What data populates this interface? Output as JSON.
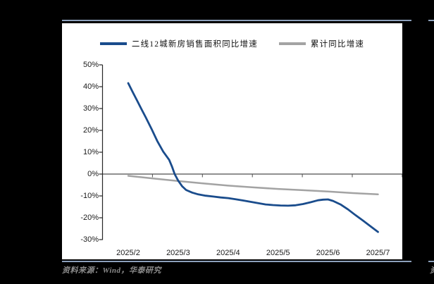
{
  "page": {
    "background": "#000000",
    "panel_background": "#ffffff",
    "rule_color": "#8ca0bb",
    "source_text_color": "#8c8c8c"
  },
  "footer": {
    "source_text": "资料来源：Wind，华泰研究",
    "adjacent_fragment": "资"
  },
  "chart_data": {
    "type": "line",
    "title": "",
    "categories": [
      "2025/2",
      "2025/3",
      "2025/4",
      "2025/5",
      "2025/6",
      "2025/7"
    ],
    "x_scale": "month_index_0_to_5",
    "ylim": [
      -30,
      50
    ],
    "yticks": [
      50,
      40,
      30,
      20,
      10,
      0,
      -10,
      -20,
      -30
    ],
    "ytick_labels": [
      "50%",
      "40%",
      "30%",
      "20%",
      "10%",
      "0%",
      "-10%",
      "-20%",
      "-30%"
    ],
    "grid": false,
    "legend_position": "top-center",
    "axis_color": "#262626",
    "zeroline_color": "#4d4d4d",
    "series": [
      {
        "name": "二线12城新房销售面积同比增速",
        "color": "#1a4c8c",
        "stroke_width": 2.8,
        "points": [
          [
            0,
            41.6
          ],
          [
            0.09,
            37.5
          ],
          [
            0.18,
            33.5
          ],
          [
            0.27,
            29.5
          ],
          [
            0.35,
            26
          ],
          [
            0.47,
            20.5
          ],
          [
            0.58,
            15.2
          ],
          [
            0.7,
            10.3
          ],
          [
            0.82,
            6.5
          ],
          [
            0.88,
            3.2
          ],
          [
            0.93,
            0
          ],
          [
            1,
            -3
          ],
          [
            1.08,
            -5.6
          ],
          [
            1.16,
            -7.3
          ],
          [
            1.28,
            -8.5
          ],
          [
            1.4,
            -9.3
          ],
          [
            1.55,
            -9.9
          ],
          [
            1.7,
            -10.3
          ],
          [
            1.85,
            -10.7
          ],
          [
            2,
            -11
          ],
          [
            2.15,
            -11.5
          ],
          [
            2.3,
            -12.1
          ],
          [
            2.45,
            -12.7
          ],
          [
            2.6,
            -13.3
          ],
          [
            2.75,
            -13.9
          ],
          [
            2.9,
            -14.2
          ],
          [
            3.05,
            -14.4
          ],
          [
            3.2,
            -14.5
          ],
          [
            3.35,
            -14.3
          ],
          [
            3.5,
            -13.7
          ],
          [
            3.65,
            -12.9
          ],
          [
            3.8,
            -12
          ],
          [
            3.9,
            -11.7
          ],
          [
            4,
            -11.6
          ],
          [
            4.1,
            -12.3
          ],
          [
            4.25,
            -13.9
          ],
          [
            4.4,
            -16.2
          ],
          [
            4.55,
            -18.8
          ],
          [
            4.7,
            -21.3
          ],
          [
            4.85,
            -23.9
          ],
          [
            5,
            -26.5
          ]
        ]
      },
      {
        "name": "累计同比增速",
        "color": "#a3a3a3",
        "stroke_width": 2.5,
        "points": [
          [
            0,
            -0.8
          ],
          [
            0.5,
            -2
          ],
          [
            1,
            -3.2
          ],
          [
            1.5,
            -4.3
          ],
          [
            2,
            -5.3
          ],
          [
            2.5,
            -6.1
          ],
          [
            3,
            -6.8
          ],
          [
            3.5,
            -7.4
          ],
          [
            4,
            -8
          ],
          [
            4.5,
            -8.7
          ],
          [
            5,
            -9.3
          ]
        ]
      }
    ]
  }
}
